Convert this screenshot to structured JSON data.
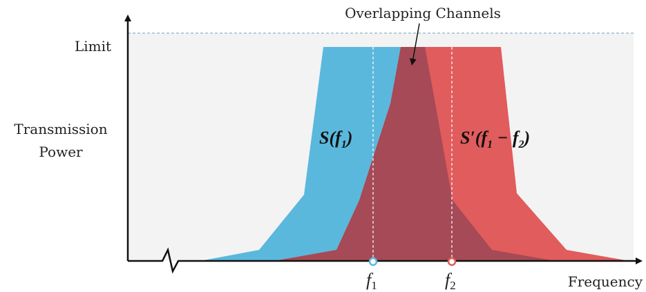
{
  "title": "Overlapping Channels",
  "axis": {
    "y_limit_label": "Limit",
    "y_label_line1": "Transmission",
    "y_label_line2": "Power",
    "x_label": "Frequency"
  },
  "signals": {
    "s1": {
      "label_main": "S(f",
      "label_sub": "1",
      "label_end": ")",
      "color": "#5bb8dd"
    },
    "s2": {
      "label_main": "S′(f",
      "label_sub1": "1",
      "label_mid": " − f",
      "label_sub2": "2",
      "label_end": ")",
      "color": "#e15c5c"
    },
    "overlap_color": "#a54a56"
  },
  "markers": {
    "f1": {
      "letter": "f",
      "sub": "1",
      "color": "#5bb8dd"
    },
    "f2": {
      "letter": "f",
      "sub": "2",
      "color": "#e15c5c"
    }
  }
}
